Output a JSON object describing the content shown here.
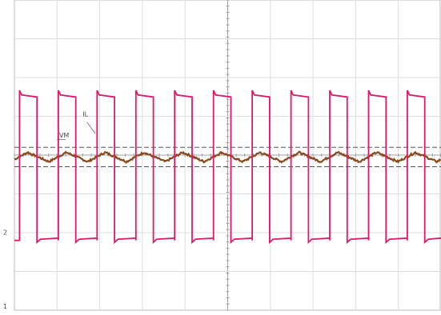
{
  "chart_data": {
    "type": "line",
    "grid": true,
    "xlim": [
      0,
      10
    ],
    "ylim": [
      0,
      8
    ],
    "periods": 11,
    "series": [
      {
        "name": "VM",
        "color": "#8a4a1c",
        "baseline": 3.95,
        "amplitude": 0.12,
        "shape": "sawtooth"
      },
      {
        "name": "IL",
        "color": "#e0186c",
        "high": 5.55,
        "low": 1.8,
        "duty": 0.45,
        "shape": "square"
      }
    ],
    "cursor_lines": [
      4.2,
      3.7
    ],
    "annotations": [
      {
        "text": "VM",
        "series": "VM"
      },
      {
        "text": "IL",
        "series": "IL"
      }
    ],
    "channel_markers": [
      {
        "text": "2",
        "color": "#e0186c"
      },
      {
        "text": "1",
        "color": "#8a4a1c"
      }
    ]
  }
}
